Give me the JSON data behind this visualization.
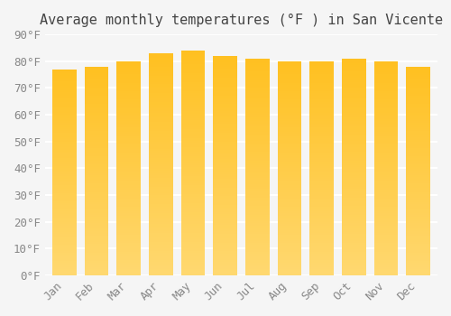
{
  "title": "Average monthly temperatures (°F ) in San Vicente",
  "months": [
    "Jan",
    "Feb",
    "Mar",
    "Apr",
    "May",
    "Jun",
    "Jul",
    "Aug",
    "Sep",
    "Oct",
    "Nov",
    "Dec"
  ],
  "values": [
    77,
    78,
    80,
    83,
    84,
    82,
    81,
    80,
    80,
    81,
    80,
    78
  ],
  "bar_color_top": "#FFC020",
  "bar_color_bottom": "#FFD870",
  "ylim": [
    0,
    90
  ],
  "yticks": [
    0,
    10,
    20,
    30,
    40,
    50,
    60,
    70,
    80,
    90
  ],
  "ytick_labels": [
    "0°F",
    "10°F",
    "20°F",
    "30°F",
    "40°F",
    "50°F",
    "60°F",
    "70°F",
    "80°F",
    "90°F"
  ],
  "background_color": "#f5f5f5",
  "grid_color": "#ffffff",
  "title_fontsize": 11,
  "tick_fontsize": 9
}
